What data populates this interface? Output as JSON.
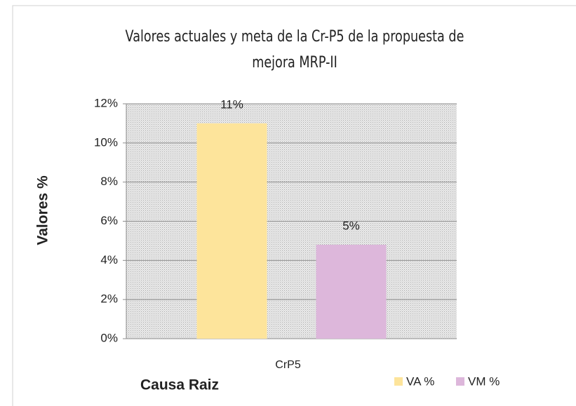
{
  "chart_data": {
    "type": "bar",
    "title": "Valores actuales y meta de la Cr-P5 de la propuesta de mejora MRP-II",
    "y_label": "Valores %",
    "x_label": "Causa Raiz",
    "categories": [
      "CrP5"
    ],
    "series": [
      {
        "name": "VA %",
        "color": "#fde49b",
        "values": [
          11
        ],
        "value_labels": [
          "11%"
        ]
      },
      {
        "name": "VM %",
        "color": "#ddb7db",
        "values": [
          4.8
        ],
        "value_labels": [
          "5%"
        ]
      }
    ],
    "ylim": [
      0,
      12
    ],
    "yticks": [
      {
        "value": 0,
        "label": "0%"
      },
      {
        "value": 2,
        "label": "2%"
      },
      {
        "value": 4,
        "label": "4%"
      },
      {
        "value": 6,
        "label": "6%"
      },
      {
        "value": 8,
        "label": "8%"
      },
      {
        "value": 10,
        "label": "10%"
      },
      {
        "value": 12,
        "label": "12%"
      }
    ],
    "grid": true,
    "legend": "bottom-right"
  }
}
